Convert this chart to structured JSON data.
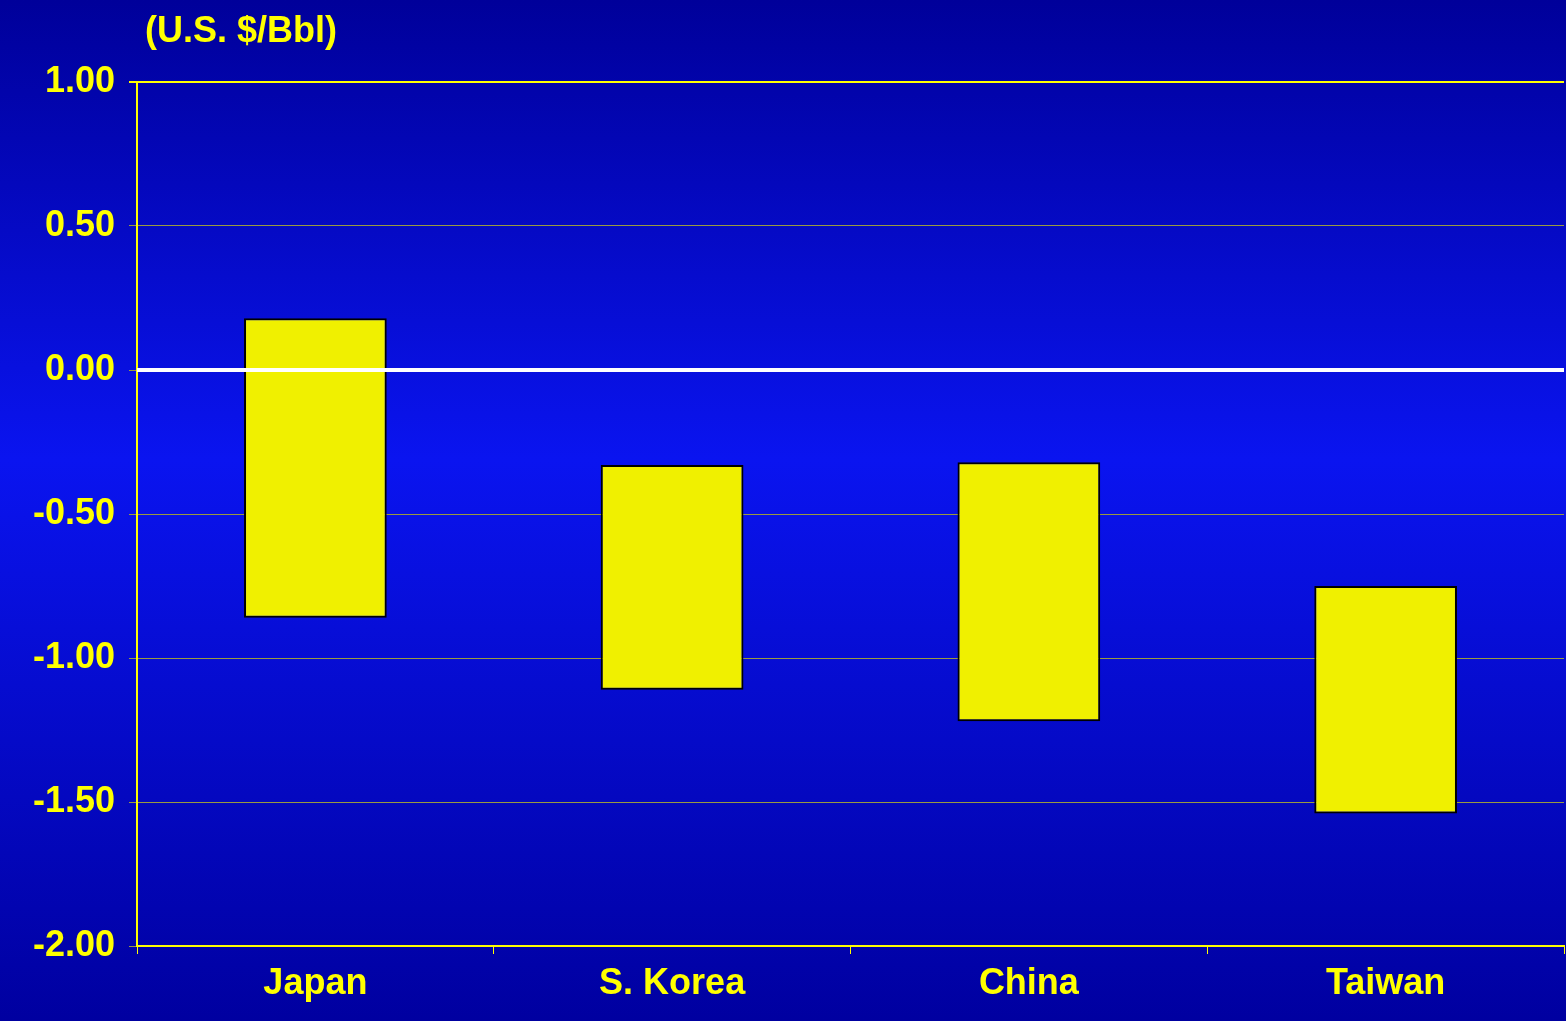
{
  "chart_data": {
    "type": "bar",
    "ylabel": "(U.S. $/Bbl)",
    "categories": [
      "Japan",
      "S. Korea",
      "China",
      "Taiwan"
    ],
    "base": [
      -0.86,
      -1.11,
      -1.22,
      -1.54
    ],
    "values": [
      1.04,
      0.78,
      0.9,
      0.79
    ],
    "color": "#f0f000",
    "ylim": [
      -2,
      1
    ],
    "yticks": [
      {
        "value": -2,
        "label": "-2.00"
      },
      {
        "value": -1.5,
        "label": "-1.50"
      },
      {
        "value": -1,
        "label": "-1.00"
      },
      {
        "value": -0.5,
        "label": "-0.50"
      },
      {
        "value": 0,
        "label": "0.00"
      },
      {
        "value": 0.5,
        "label": "0.50"
      },
      {
        "value": 1,
        "label": "1.00"
      }
    ],
    "grid": "y",
    "legend": false,
    "ref_lines": [
      {
        "axis": "y",
        "value": 0,
        "label": null,
        "color": "#ffffff"
      }
    ]
  }
}
